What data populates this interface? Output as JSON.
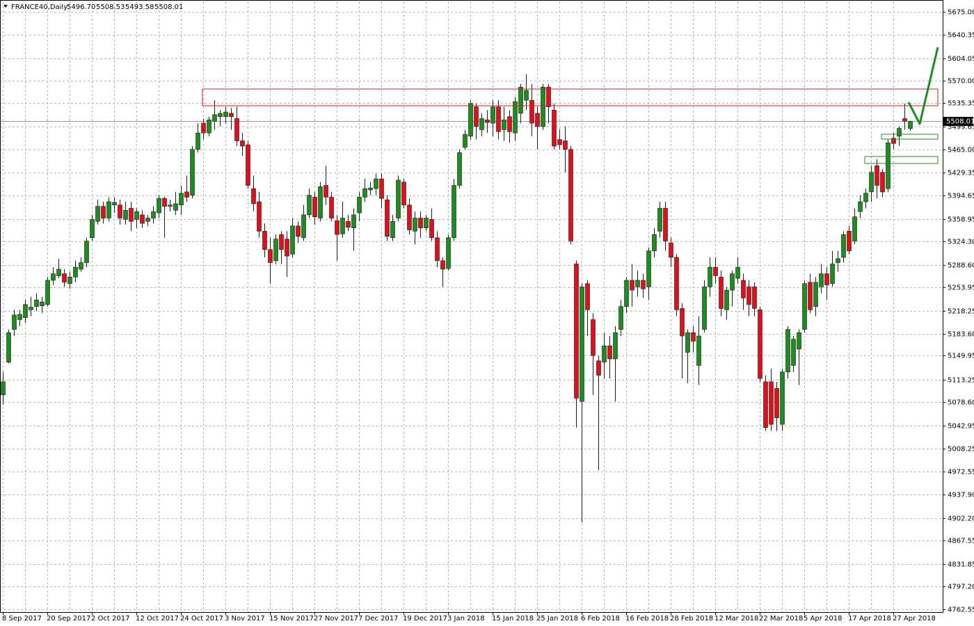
{
  "chart_data": {
    "type": "candlestick",
    "title": "FRANCE40,Daily",
    "header_values": [
      "5496.70",
      "5508.53",
      "5493.58",
      "5508.01"
    ],
    "up_color": "#1e8c1e",
    "down_color": "#e0101a",
    "wick_color": "#1a1a1a",
    "grid": true,
    "ylim": [
      4758.3,
      5689.9
    ],
    "yticks": [
      {
        "value": 5675,
        "label": "5675.00"
      },
      {
        "value": 5640.35,
        "label": "5640.35"
      },
      {
        "value": 5604.05,
        "label": "5604.05"
      },
      {
        "value": 5570,
        "label": "5570.00"
      },
      {
        "value": 5535.35,
        "label": "5535.35"
      },
      {
        "value": 5499.65,
        "label": "5499.65"
      },
      {
        "value": 5465,
        "label": "5465.00"
      },
      {
        "value": 5429.35,
        "label": "5429.35"
      },
      {
        "value": 5394.65,
        "label": "5394.65"
      },
      {
        "value": 5358.95,
        "label": "5358.95"
      },
      {
        "value": 5324.3,
        "label": "5324.30"
      },
      {
        "value": 5288.6,
        "label": "5288.60"
      },
      {
        "value": 5253.95,
        "label": "5253.95"
      },
      {
        "value": 5218.25,
        "label": "5218.25"
      },
      {
        "value": 5183.6,
        "label": "5183.60"
      },
      {
        "value": 5149.95,
        "label": "5149.95"
      },
      {
        "value": 5113.25,
        "label": "5113.25"
      },
      {
        "value": 5078.6,
        "label": "5078.60"
      },
      {
        "value": 5042.95,
        "label": "5042.95"
      },
      {
        "value": 5008.25,
        "label": "5008.25"
      },
      {
        "value": 4972.55,
        "label": "4972.55"
      },
      {
        "value": 4937.9,
        "label": "4937.90"
      },
      {
        "value": 4902.2,
        "label": "4902.20"
      },
      {
        "value": 4867.55,
        "label": "4867.55"
      },
      {
        "value": 4831.85,
        "label": "4831.85"
      },
      {
        "value": 4797.2,
        "label": "4797.20"
      },
      {
        "value": 4762.55,
        "label": "4762.55"
      }
    ],
    "last_price": {
      "value": 5508.01,
      "label": "5508.01"
    },
    "categories": [
      "8 Sep 2017",
      null,
      null,
      null,
      null,
      null,
      null,
      null,
      "20 Sep 2017",
      null,
      null,
      null,
      null,
      null,
      null,
      null,
      "2 Oct 2017",
      null,
      null,
      null,
      null,
      null,
      null,
      null,
      "12 Oct 2017",
      null,
      null,
      null,
      null,
      null,
      null,
      null,
      "24 Oct 2017",
      null,
      null,
      null,
      null,
      null,
      null,
      null,
      "3 Nov 2017",
      null,
      null,
      null,
      null,
      null,
      null,
      null,
      "15 Nov 2017",
      null,
      null,
      null,
      null,
      null,
      null,
      null,
      "27 Nov 2017",
      null,
      null,
      null,
      null,
      null,
      null,
      null,
      "7 Dec 2017",
      null,
      null,
      null,
      null,
      null,
      null,
      null,
      "19 Dec 2017",
      null,
      null,
      null,
      null,
      null,
      null,
      null,
      "3 Jan 2018",
      null,
      null,
      null,
      null,
      null,
      null,
      null,
      "15 Jan 2018",
      null,
      null,
      null,
      null,
      null,
      null,
      null,
      "25 Jan 2018",
      null,
      null,
      null,
      null,
      null,
      null,
      null,
      "6 Feb 2018",
      null,
      null,
      null,
      null,
      null,
      null,
      null,
      "16 Feb 2018",
      null,
      null,
      null,
      null,
      null,
      null,
      null,
      "28 Feb 2018",
      null,
      null,
      null,
      null,
      null,
      null,
      null,
      "12 Mar 2018",
      null,
      null,
      null,
      null,
      null,
      null,
      null,
      "22 Mar 2018",
      null,
      null,
      null,
      null,
      null,
      null,
      null,
      "5 Apr 2018",
      null,
      null,
      null,
      null,
      null,
      null,
      null,
      "17 Apr 2018",
      null,
      null,
      null,
      null,
      null,
      null,
      null,
      "27 Apr 2018",
      null,
      null,
      null
    ],
    "open": [
      5090,
      5140,
      5190,
      5205,
      5208,
      5220,
      5225,
      5226,
      5228,
      5265,
      5272,
      5275,
      5260,
      5270,
      5282,
      5292,
      5330,
      5355,
      5378,
      5360,
      5380,
      5380,
      5358,
      5375,
      5358,
      5365,
      5355,
      5360,
      5368,
      5390,
      5378,
      5372,
      5380,
      5400,
      5395,
      5465,
      5505,
      5490,
      5508,
      5515,
      5515,
      5520,
      5512,
      5478,
      5472,
      5405,
      5385,
      5340,
      5312,
      5295,
      5335,
      5328,
      5305,
      5348,
      5330,
      5365,
      5392,
      5360,
      5410,
      5392,
      5356,
      5336,
      5355,
      5345,
      5368,
      5392,
      5403,
      5405,
      5420,
      5388,
      5330,
      5360,
      5415,
      5380,
      5340,
      5360,
      5345,
      5358,
      5330,
      5295,
      5283,
      5330,
      5410,
      5468,
      5485,
      5530,
      5495,
      5510,
      5505,
      5530,
      5495,
      5515,
      5490,
      5520,
      5540,
      5540,
      5520,
      5500,
      5560,
      5525,
      5480,
      5478,
      5465,
      5290,
      5080,
      5260,
      5205,
      5142,
      5140,
      5165,
      5145,
      5190,
      5225,
      5265,
      5255,
      5265,
      5255,
      5310,
      5340,
      5375,
      5322,
      5300,
      5222,
      5155,
      5185,
      5135,
      5190,
      5255,
      5285,
      5270,
      5220,
      5250,
      5268,
      5265,
      5255,
      5255,
      5220,
      5110,
      5110,
      5100,
      5045,
      5125,
      5135,
      5160,
      5190,
      5262,
      5225,
      5255,
      5275,
      5260,
      5292,
      5300,
      5340,
      5325,
      5370,
      5385,
      5400,
      5440,
      5430,
      5405,
      5482,
      5485,
      5512,
      5496.7
    ],
    "high": [
      5125,
      5190,
      5220,
      5220,
      5235,
      5240,
      5245,
      5240,
      5270,
      5285,
      5298,
      5282,
      5278,
      5295,
      5300,
      5330,
      5365,
      5388,
      5385,
      5392,
      5392,
      5388,
      5385,
      5385,
      5375,
      5372,
      5365,
      5378,
      5395,
      5393,
      5388,
      5400,
      5410,
      5425,
      5470,
      5505,
      5512,
      5515,
      5540,
      5525,
      5530,
      5528,
      5530,
      5490,
      5478,
      5425,
      5400,
      5352,
      5330,
      5335,
      5340,
      5340,
      5360,
      5355,
      5380,
      5405,
      5400,
      5415,
      5440,
      5400,
      5365,
      5385,
      5365,
      5375,
      5400,
      5420,
      5415,
      5428,
      5428,
      5395,
      5365,
      5425,
      5420,
      5390,
      5370,
      5370,
      5365,
      5375,
      5340,
      5300,
      5335,
      5420,
      5465,
      5495,
      5540,
      5535,
      5520,
      5525,
      5540,
      5540,
      5530,
      5525,
      5545,
      5565,
      5580,
      5565,
      5530,
      5565,
      5565,
      5535,
      5495,
      5500,
      5470,
      5295,
      5260,
      5265,
      5215,
      5150,
      5185,
      5180,
      5195,
      5235,
      5270,
      5290,
      5280,
      5275,
      5315,
      5345,
      5385,
      5385,
      5330,
      5305,
      5230,
      5190,
      5195,
      5210,
      5265,
      5300,
      5300,
      5280,
      5255,
      5280,
      5300,
      5275,
      5265,
      5262,
      5225,
      5120,
      5130,
      5110,
      5130,
      5195,
      5180,
      5190,
      5265,
      5275,
      5270,
      5290,
      5285,
      5310,
      5310,
      5340,
      5348,
      5375,
      5395,
      5405,
      5440,
      5450,
      5435,
      5480,
      5490,
      5500,
      5535,
      5508.53
    ],
    "low": [
      5075,
      5138,
      5180,
      5195,
      5200,
      5210,
      5218,
      5215,
      5225,
      5258,
      5268,
      5255,
      5252,
      5262,
      5278,
      5285,
      5325,
      5350,
      5352,
      5355,
      5368,
      5350,
      5350,
      5340,
      5345,
      5345,
      5348,
      5352,
      5360,
      5330,
      5370,
      5365,
      5365,
      5385,
      5390,
      5460,
      5480,
      5485,
      5495,
      5500,
      5505,
      5495,
      5470,
      5455,
      5405,
      5370,
      5330,
      5300,
      5260,
      5290,
      5290,
      5270,
      5300,
      5322,
      5325,
      5360,
      5350,
      5355,
      5380,
      5355,
      5295,
      5330,
      5340,
      5310,
      5355,
      5385,
      5395,
      5395,
      5375,
      5325,
      5325,
      5355,
      5375,
      5335,
      5320,
      5330,
      5340,
      5325,
      5285,
      5255,
      5280,
      5325,
      5405,
      5465,
      5480,
      5480,
      5485,
      5490,
      5485,
      5480,
      5478,
      5475,
      5478,
      5505,
      5525,
      5485,
      5465,
      5495,
      5505,
      5465,
      5465,
      5430,
      5320,
      5040,
      4895,
      5180,
      5090,
      4975,
      5115,
      5115,
      5080,
      5180,
      5215,
      5225,
      5240,
      5238,
      5235,
      5300,
      5330,
      5310,
      5285,
      5210,
      5115,
      5108,
      5155,
      5105,
      5185,
      5240,
      5260,
      5210,
      5205,
      5225,
      5260,
      5220,
      5210,
      5210,
      5110,
      5035,
      5035,
      5035,
      5035,
      5115,
      5125,
      5105,
      5185,
      5215,
      5210,
      5245,
      5235,
      5255,
      5278,
      5292,
      5305,
      5320,
      5360,
      5375,
      5385,
      5390,
      5392,
      5400,
      5465,
      5470,
      5495,
      5493.58
    ],
    "close": [
      5110,
      5185,
      5212,
      5213,
      5228,
      5224,
      5235,
      5232,
      5265,
      5275,
      5282,
      5262,
      5270,
      5285,
      5292,
      5325,
      5358,
      5378,
      5360,
      5385,
      5384,
      5360,
      5372,
      5355,
      5370,
      5352,
      5360,
      5370,
      5390,
      5378,
      5380,
      5382,
      5398,
      5392,
      5465,
      5490,
      5490,
      5510,
      5518,
      5520,
      5522,
      5515,
      5478,
      5470,
      5410,
      5382,
      5340,
      5312,
      5292,
      5328,
      5312,
      5302,
      5348,
      5332,
      5365,
      5395,
      5362,
      5408,
      5392,
      5360,
      5335,
      5360,
      5346,
      5365,
      5392,
      5405,
      5406,
      5420,
      5390,
      5332,
      5355,
      5418,
      5380,
      5342,
      5360,
      5345,
      5360,
      5330,
      5295,
      5282,
      5330,
      5410,
      5460,
      5488,
      5535,
      5500,
      5512,
      5506,
      5530,
      5492,
      5510,
      5492,
      5538,
      5560,
      5555,
      5505,
      5500,
      5560,
      5530,
      5470,
      5472,
      5465,
      5325,
      5085,
      5255,
      5220,
      5150,
      5120,
      5165,
      5145,
      5185,
      5225,
      5265,
      5250,
      5265,
      5252,
      5310,
      5335,
      5375,
      5325,
      5300,
      5220,
      5180,
      5185,
      5172,
      5180,
      5255,
      5285,
      5272,
      5222,
      5250,
      5275,
      5285,
      5238,
      5228,
      5222,
      5115,
      5040,
      5045,
      5055,
      5125,
      5190,
      5175,
      5185,
      5260,
      5220,
      5262,
      5275,
      5258,
      5290,
      5298,
      5335,
      5310,
      5362,
      5385,
      5398,
      5430,
      5410,
      5400,
      5475,
      5474,
      5497,
      5508,
      5508.01
    ]
  }
}
